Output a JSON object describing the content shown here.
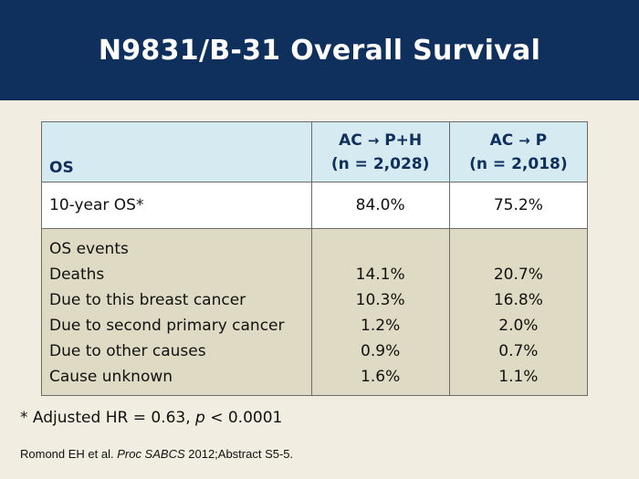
{
  "title": "N9831/B-31 Overall Survival",
  "table": {
    "header": {
      "row_label": "OS",
      "col1_arm": "AC",
      "col1_arrow": "→",
      "col1_drug": "P+H",
      "col1_n": "(n = 2,028)",
      "col2_arm": "AC",
      "col2_arrow": "→",
      "col2_drug": "P",
      "col2_n": "(n = 2,018)"
    },
    "os_row": {
      "label": "10-year OS*",
      "col1": "84.0%",
      "col2": "75.2%"
    },
    "events": {
      "heading": "OS events",
      "rows": [
        {
          "label": "Deaths",
          "col1": "14.1%",
          "col2": "20.7%"
        },
        {
          "label": "Due to this breast cancer",
          "col1": "10.3%",
          "col2": "16.8%"
        },
        {
          "label": "Due to second primary cancer",
          "col1": "1.2%",
          "col2": "2.0%"
        },
        {
          "label": "Due to other causes",
          "col1": "0.9%",
          "col2": "0.7%"
        },
        {
          "label": "Cause unknown",
          "col1": "1.6%",
          "col2": "1.1%"
        }
      ]
    }
  },
  "footnote": {
    "prefix": "* Adjusted HR = 0.63, ",
    "p": "p",
    "suffix": " < 0.0001"
  },
  "citation": {
    "author": "Romond EH et al. ",
    "journal": "Proc SABCS",
    "rest": " 2012;Abstract S5-5."
  },
  "colors": {
    "title_bar": "#0f2f5c",
    "header_fill": "#d6eaf2",
    "events_fill": "#dedac3",
    "background": "#f1ede0"
  }
}
